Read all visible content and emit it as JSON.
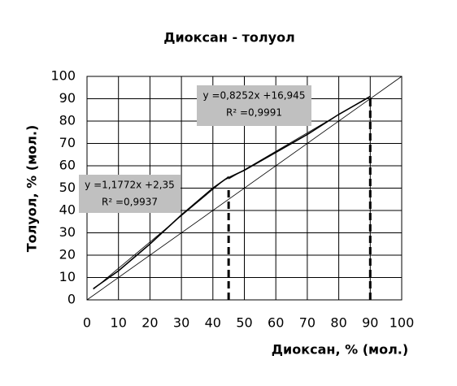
{
  "chart_data": {
    "type": "line",
    "title": "Диоксан - толуол",
    "x_label": "Диоксан, % (мол.)",
    "y_label": "Толуол, % (мол.)",
    "xlim": [
      0,
      100
    ],
    "ylim": [
      0,
      100
    ],
    "xticks": [
      0,
      10,
      20,
      30,
      40,
      50,
      60,
      70,
      80,
      90,
      100
    ],
    "yticks": [
      0,
      10,
      20,
      30,
      40,
      50,
      60,
      70,
      80,
      90,
      100
    ],
    "grid": true,
    "series": [
      {
        "color": "#000000",
        "x": [
          0,
          100
        ],
        "values": [
          0,
          100
        ]
      },
      {
        "color": "#000000",
        "x": [
          2,
          10,
          20,
          30,
          40,
          44,
          50,
          60,
          70,
          80,
          90
        ],
        "values": [
          5,
          13,
          25,
          38,
          50,
          54,
          58,
          66,
          74,
          83,
          91
        ]
      },
      {
        "color": "#000000",
        "x": [
          2,
          45
        ],
        "values": [
          4.7,
          55.3
        ]
      },
      {
        "color": "#000000",
        "x": [
          45,
          90
        ],
        "values": [
          54.1,
          91.2
        ]
      }
    ],
    "reference_lines": [
      {
        "x": 45,
        "y": 50
      },
      {
        "x": 90,
        "y": 91
      }
    ],
    "annotations": [
      {
        "lines": [
          "y =1,1772x +2,35",
          "R² =0,9937"
        ]
      },
      {
        "lines": [
          "y =0,8252x +16,945",
          "R² =0,9991"
        ]
      }
    ]
  }
}
